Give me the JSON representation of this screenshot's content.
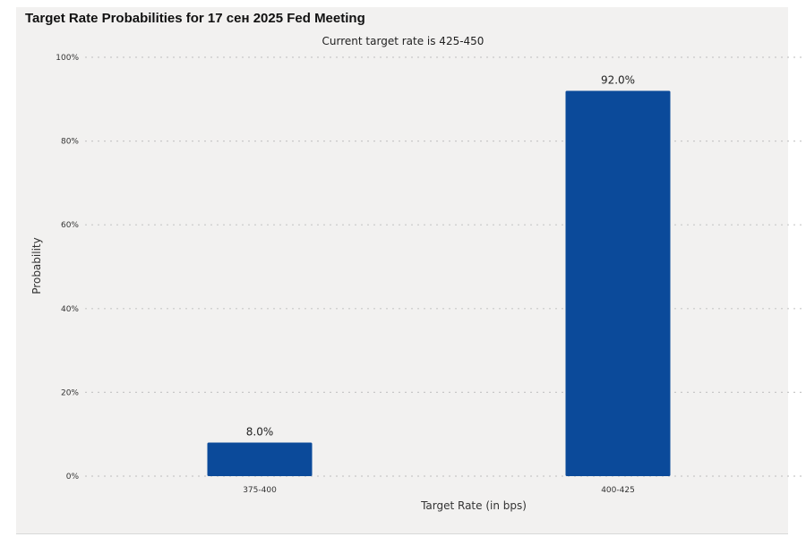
{
  "colors": {
    "bar": "#0b4a9a",
    "background": "#f2f1f0",
    "grid": "#c8c8c8"
  },
  "chart_data": {
    "type": "bar",
    "title": "Target Rate Probabilities for 17 сен 2025 Fed Meeting",
    "subtitle": "Current target rate is 425-450",
    "xlabel": "Target Rate (in bps)",
    "ylabel": "Probability",
    "categories": [
      "375-400",
      "400-425"
    ],
    "values": [
      8.0,
      92.0
    ],
    "data_labels": [
      "8.0%",
      "92.0%"
    ],
    "ylim": [
      0,
      100
    ],
    "yticks": [
      0,
      20,
      40,
      60,
      80,
      100
    ],
    "ytick_labels": [
      "0%",
      "20%",
      "40%",
      "60%",
      "80%",
      "100%"
    ],
    "grid": true,
    "legend": "none"
  }
}
